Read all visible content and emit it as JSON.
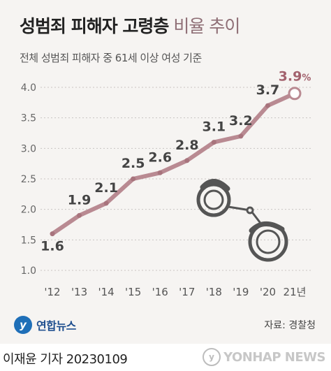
{
  "header": {
    "title_bold": "성범죄 피해자 고령층",
    "title_light": "비율 추이",
    "subtitle": "전체 성범죄 피해자 중 61세 이상 여성 기준"
  },
  "chart_data": {
    "type": "line",
    "x": [
      "'12",
      "'13",
      "'14",
      "'15",
      "'16",
      "'17",
      "'18",
      "'19",
      "'20",
      "21년"
    ],
    "values": [
      1.6,
      1.9,
      2.1,
      2.5,
      2.6,
      2.8,
      3.1,
      3.2,
      3.7,
      3.9
    ],
    "data_labels": [
      "1.6",
      "1.9",
      "2.1",
      "2.5",
      "2.6",
      "2.8",
      "3.1",
      "3.2",
      "3.7",
      "3.9"
    ],
    "last_label_unit": "%",
    "yticks": [
      "1.0",
      "1.5",
      "2.0",
      "2.5",
      "3.0",
      "3.5",
      "4.0"
    ],
    "ylim": [
      1.0,
      4.0
    ],
    "grid": "horizontal dashed",
    "colors": {
      "line": "#b98a92",
      "last_point_label": "#a2616d",
      "label": "#444444"
    }
  },
  "branding": {
    "logo_text": "연합뉴스",
    "source": "자료: 경찰청"
  },
  "footer": {
    "reporter": "이재윤 기자  20230109",
    "watermark": "YONHAP NEWS"
  }
}
